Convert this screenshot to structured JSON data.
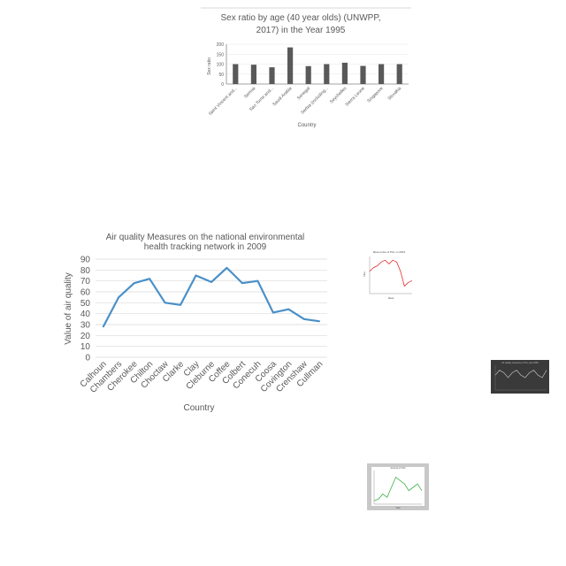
{
  "chart_data": [
    {
      "id": "sex-ratio",
      "type": "bar",
      "title": [
        "Sex ratio by age (40 year olds) (UNWPP,",
        "2017) in the Year 1995"
      ],
      "xlabel": "Country",
      "ylabel": "Sex ratio",
      "ylim": [
        0,
        200
      ],
      "yticks": [
        0,
        50,
        100,
        150,
        200
      ],
      "categories": [
        "Saint Vincent and...",
        "Samoa",
        "Sao Tome and...",
        "Saudi Arabia",
        "Senegal",
        "Serbia (including...",
        "Seychelles",
        "Sierra Leone",
        "Singapore",
        "Slovakia"
      ],
      "values": [
        100,
        97,
        84,
        184,
        90,
        100,
        107,
        91,
        100,
        100
      ],
      "colors": {
        "bar": "#595959",
        "axis": "#888888",
        "text": "#595959"
      }
    },
    {
      "id": "air-quality",
      "type": "line",
      "title": [
        "Air quality Measures on the national environmental",
        "health tracking network in 2009"
      ],
      "xlabel": "Country",
      "ylabel": "Value of air quality",
      "ylim": [
        0,
        90
      ],
      "yticks": [
        0,
        10,
        20,
        30,
        40,
        50,
        60,
        70,
        80,
        90
      ],
      "categories": [
        "Calhoun",
        "Chambers",
        "Cherokee",
        "Chilton",
        "Choctaw",
        "Clarke",
        "Clay",
        "Cleburne",
        "Coffee",
        "Colbert",
        "Conecuh",
        "Coosa",
        "Covington",
        "Crenshaw",
        "Cullman"
      ],
      "values": [
        28,
        55,
        68,
        72,
        50,
        48,
        75,
        69,
        82,
        68,
        70,
        41,
        44,
        35,
        33
      ],
      "colors": {
        "line": "#4a90c8",
        "grid": "#d9d9d9",
        "text": "#595959"
      }
    },
    {
      "id": "thumb-red",
      "type": "line",
      "title": "Mean price of PCs, in 2013",
      "xlabel": "Week",
      "ylabel": "Price",
      "ylim": [
        0,
        10
      ],
      "values": [
        6,
        7,
        7.5,
        8.5,
        9,
        8,
        9,
        8.5,
        6,
        2,
        3,
        3.5
      ],
      "colors": {
        "line": "#e03030"
      }
    },
    {
      "id": "thumb-dark",
      "type": "line",
      "title": "Air quality measures of the year 2009",
      "ylim": [
        0,
        10
      ],
      "values": [
        6,
        8,
        7,
        5,
        7,
        8,
        6,
        5,
        7,
        8,
        6,
        5,
        8
      ],
      "colors": {
        "line": "#bbbbbb"
      }
    },
    {
      "id": "thumb-green",
      "type": "line",
      "title": "Amount of CO2",
      "xlabel": "Year",
      "ylim": [
        0,
        10
      ],
      "values": [
        1,
        1.5,
        3,
        2,
        5,
        8,
        7,
        6,
        4,
        5,
        6,
        4
      ],
      "colors": {
        "line": "#3cb043"
      }
    }
  ]
}
